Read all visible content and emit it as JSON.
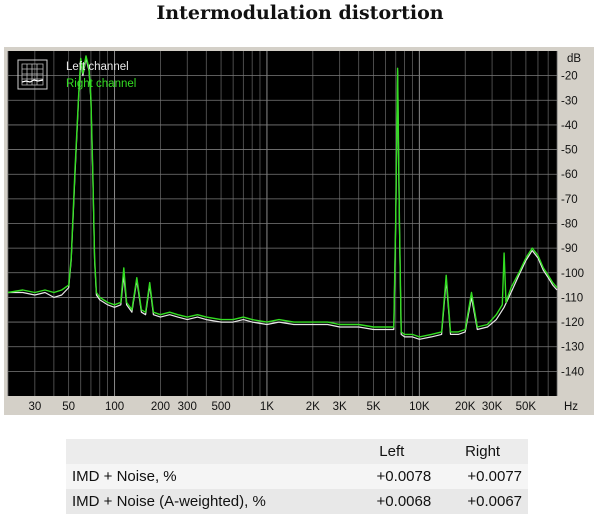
{
  "page": {
    "title": "Intermodulation distortion"
  },
  "chart_data": {
    "type": "line",
    "title": "Intermodulation distortion",
    "xlabel": "Hz",
    "ylabel": "dB",
    "x_scale": "log",
    "xlim": [
      20,
      80000
    ],
    "ylim": [
      -150,
      -10
    ],
    "grid": true,
    "legend_position": "top-left",
    "x_ticks": [
      {
        "value": 30,
        "label": "30"
      },
      {
        "value": 50,
        "label": "50"
      },
      {
        "value": 100,
        "label": "100"
      },
      {
        "value": 200,
        "label": "200"
      },
      {
        "value": 300,
        "label": "300"
      },
      {
        "value": 500,
        "label": "500"
      },
      {
        "value": 1000,
        "label": "1K"
      },
      {
        "value": 2000,
        "label": "2K"
      },
      {
        "value": 3000,
        "label": "3K"
      },
      {
        "value": 5000,
        "label": "5K"
      },
      {
        "value": 10000,
        "label": "10K"
      },
      {
        "value": 20000,
        "label": "20K"
      },
      {
        "value": 30000,
        "label": "30K"
      },
      {
        "value": 50000,
        "label": "50K"
      }
    ],
    "y_ticks": [
      {
        "value": -20,
        "label": "-20"
      },
      {
        "value": -30,
        "label": "-30"
      },
      {
        "value": -40,
        "label": "-40"
      },
      {
        "value": -50,
        "label": "-50"
      },
      {
        "value": -60,
        "label": "-60"
      },
      {
        "value": -70,
        "label": "-70"
      },
      {
        "value": -80,
        "label": "-80"
      },
      {
        "value": -90,
        "label": "-90"
      },
      {
        "value": -100,
        "label": "-100"
      },
      {
        "value": -110,
        "label": "-110"
      },
      {
        "value": -120,
        "label": "-120"
      },
      {
        "value": -130,
        "label": "-130"
      },
      {
        "value": -140,
        "label": "-140"
      }
    ],
    "series": [
      {
        "name": "Left channel",
        "color": "#e8e8e8",
        "points": [
          [
            20,
            -108
          ],
          [
            25,
            -108
          ],
          [
            30,
            -109
          ],
          [
            35,
            -108
          ],
          [
            40,
            -110
          ],
          [
            45,
            -109
          ],
          [
            50,
            -106
          ],
          [
            52,
            -95
          ],
          [
            55,
            -60
          ],
          [
            58,
            -30
          ],
          [
            60,
            -14
          ],
          [
            62,
            -20
          ],
          [
            65,
            -13
          ],
          [
            68,
            -18
          ],
          [
            70,
            -30
          ],
          [
            72,
            -60
          ],
          [
            74,
            -95
          ],
          [
            76,
            -109
          ],
          [
            80,
            -111
          ],
          [
            90,
            -113
          ],
          [
            100,
            -114
          ],
          [
            110,
            -113
          ],
          [
            115,
            -101
          ],
          [
            120,
            -113
          ],
          [
            130,
            -116
          ],
          [
            140,
            -103
          ],
          [
            150,
            -116
          ],
          [
            160,
            -117
          ],
          [
            170,
            -105
          ],
          [
            180,
            -117
          ],
          [
            200,
            -118
          ],
          [
            230,
            -117
          ],
          [
            260,
            -118
          ],
          [
            300,
            -119
          ],
          [
            350,
            -118
          ],
          [
            400,
            -119
          ],
          [
            500,
            -120
          ],
          [
            600,
            -120
          ],
          [
            700,
            -119
          ],
          [
            800,
            -120
          ],
          [
            1000,
            -121
          ],
          [
            1200,
            -120
          ],
          [
            1500,
            -121
          ],
          [
            2000,
            -121
          ],
          [
            2500,
            -121
          ],
          [
            3000,
            -122
          ],
          [
            4000,
            -122
          ],
          [
            5000,
            -123
          ],
          [
            6000,
            -123
          ],
          [
            6500,
            -123
          ],
          [
            6800,
            -123
          ],
          [
            7000,
            -80
          ],
          [
            7200,
            -18
          ],
          [
            7400,
            -80
          ],
          [
            7600,
            -125
          ],
          [
            8000,
            -126
          ],
          [
            9000,
            -126
          ],
          [
            10000,
            -127
          ],
          [
            12000,
            -126
          ],
          [
            14000,
            -125
          ],
          [
            15000,
            -103
          ],
          [
            16000,
            -125
          ],
          [
            18000,
            -125
          ],
          [
            20000,
            -124
          ],
          [
            22000,
            -110
          ],
          [
            24000,
            -123
          ],
          [
            28000,
            -122
          ],
          [
            32000,
            -119
          ],
          [
            36000,
            -114
          ],
          [
            40000,
            -108
          ],
          [
            45000,
            -101
          ],
          [
            50000,
            -95
          ],
          [
            55000,
            -91
          ],
          [
            60000,
            -94
          ],
          [
            65000,
            -99
          ],
          [
            70000,
            -102
          ],
          [
            75000,
            -105
          ],
          [
            80000,
            -107
          ]
        ]
      },
      {
        "name": "Right channel",
        "color": "#33dd22",
        "points": [
          [
            20,
            -108
          ],
          [
            25,
            -107
          ],
          [
            30,
            -108
          ],
          [
            35,
            -107
          ],
          [
            40,
            -108
          ],
          [
            45,
            -107
          ],
          [
            50,
            -105
          ],
          [
            52,
            -94
          ],
          [
            55,
            -58
          ],
          [
            58,
            -29
          ],
          [
            60,
            -13
          ],
          [
            62,
            -19
          ],
          [
            65,
            -12
          ],
          [
            68,
            -17
          ],
          [
            70,
            -29
          ],
          [
            72,
            -59
          ],
          [
            74,
            -94
          ],
          [
            76,
            -108
          ],
          [
            80,
            -110
          ],
          [
            90,
            -112
          ],
          [
            100,
            -113
          ],
          [
            110,
            -112
          ],
          [
            115,
            -98
          ],
          [
            120,
            -112
          ],
          [
            130,
            -115
          ],
          [
            140,
            -102
          ],
          [
            150,
            -115
          ],
          [
            160,
            -116
          ],
          [
            170,
            -104
          ],
          [
            180,
            -116
          ],
          [
            200,
            -117
          ],
          [
            230,
            -116
          ],
          [
            260,
            -117
          ],
          [
            300,
            -118
          ],
          [
            350,
            -117
          ],
          [
            400,
            -118
          ],
          [
            500,
            -119
          ],
          [
            600,
            -119
          ],
          [
            700,
            -118
          ],
          [
            800,
            -119
          ],
          [
            1000,
            -120
          ],
          [
            1200,
            -119
          ],
          [
            1500,
            -120
          ],
          [
            2000,
            -120
          ],
          [
            2500,
            -120
          ],
          [
            3000,
            -121
          ],
          [
            4000,
            -121
          ],
          [
            5000,
            -122
          ],
          [
            6000,
            -122
          ],
          [
            6500,
            -122
          ],
          [
            6800,
            -122
          ],
          [
            7000,
            -78
          ],
          [
            7200,
            -17
          ],
          [
            7400,
            -78
          ],
          [
            7600,
            -124
          ],
          [
            8000,
            -125
          ],
          [
            9000,
            -125
          ],
          [
            10000,
            -126
          ],
          [
            12000,
            -125
          ],
          [
            14000,
            -124
          ],
          [
            15000,
            -101
          ],
          [
            16000,
            -124
          ],
          [
            18000,
            -124
          ],
          [
            20000,
            -123
          ],
          [
            22000,
            -108
          ],
          [
            24000,
            -122
          ],
          [
            28000,
            -121
          ],
          [
            32000,
            -117
          ],
          [
            35000,
            -113
          ],
          [
            36000,
            -92
          ],
          [
            37000,
            -112
          ],
          [
            40000,
            -106
          ],
          [
            45000,
            -100
          ],
          [
            50000,
            -94
          ],
          [
            55000,
            -90
          ],
          [
            60000,
            -93
          ],
          [
            65000,
            -98
          ],
          [
            70000,
            -101
          ],
          [
            75000,
            -104
          ],
          [
            80000,
            -106
          ]
        ]
      }
    ]
  },
  "results": {
    "headers": {
      "label": "",
      "left": "Left",
      "right": "Right"
    },
    "rows": [
      {
        "label": "IMD + Noise, %",
        "left": "+0.0078",
        "right": "+0.0077"
      },
      {
        "label": "IMD + Noise (A-weighted), %",
        "left": "+0.0068",
        "right": "+0.0067"
      }
    ]
  },
  "icons": {
    "graph_icon": "grid-icon"
  }
}
